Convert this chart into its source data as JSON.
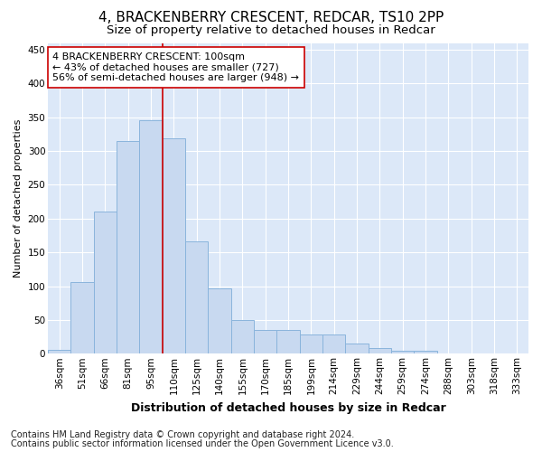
{
  "title": "4, BRACKENBERRY CRESCENT, REDCAR, TS10 2PP",
  "subtitle": "Size of property relative to detached houses in Redcar",
  "xlabel": "Distribution of detached houses by size in Redcar",
  "ylabel": "Number of detached properties",
  "categories": [
    "36sqm",
    "51sqm",
    "66sqm",
    "81sqm",
    "95sqm",
    "110sqm",
    "125sqm",
    "140sqm",
    "155sqm",
    "170sqm",
    "185sqm",
    "199sqm",
    "214sqm",
    "229sqm",
    "244sqm",
    "259sqm",
    "274sqm",
    "288sqm",
    "303sqm",
    "318sqm",
    "333sqm"
  ],
  "values": [
    6,
    106,
    210,
    315,
    345,
    319,
    166,
    97,
    50,
    35,
    35,
    29,
    29,
    15,
    8,
    5,
    5,
    1,
    1,
    0,
    1
  ],
  "bar_color": "#c8d9f0",
  "bar_edge_color": "#8ab4dc",
  "vline_x": 4.5,
  "vline_color": "#cc0000",
  "annotation_text": "4 BRACKENBERRY CRESCENT: 100sqm\n← 43% of detached houses are smaller (727)\n56% of semi-detached houses are larger (948) →",
  "annotation_box_color": "#ffffff",
  "annotation_box_edge": "#cc0000",
  "ylim": [
    0,
    460
  ],
  "yticks": [
    0,
    50,
    100,
    150,
    200,
    250,
    300,
    350,
    400,
    450
  ],
  "footnote1": "Contains HM Land Registry data © Crown copyright and database right 2024.",
  "footnote2": "Contains public sector information licensed under the Open Government Licence v3.0.",
  "plot_bg_color": "#dce8f8",
  "fig_bg_color": "#ffffff",
  "grid_color": "#ffffff",
  "title_fontsize": 11,
  "subtitle_fontsize": 9.5,
  "xlabel_fontsize": 9,
  "ylabel_fontsize": 8,
  "tick_fontsize": 7.5,
  "annotation_fontsize": 8,
  "footnote_fontsize": 7
}
